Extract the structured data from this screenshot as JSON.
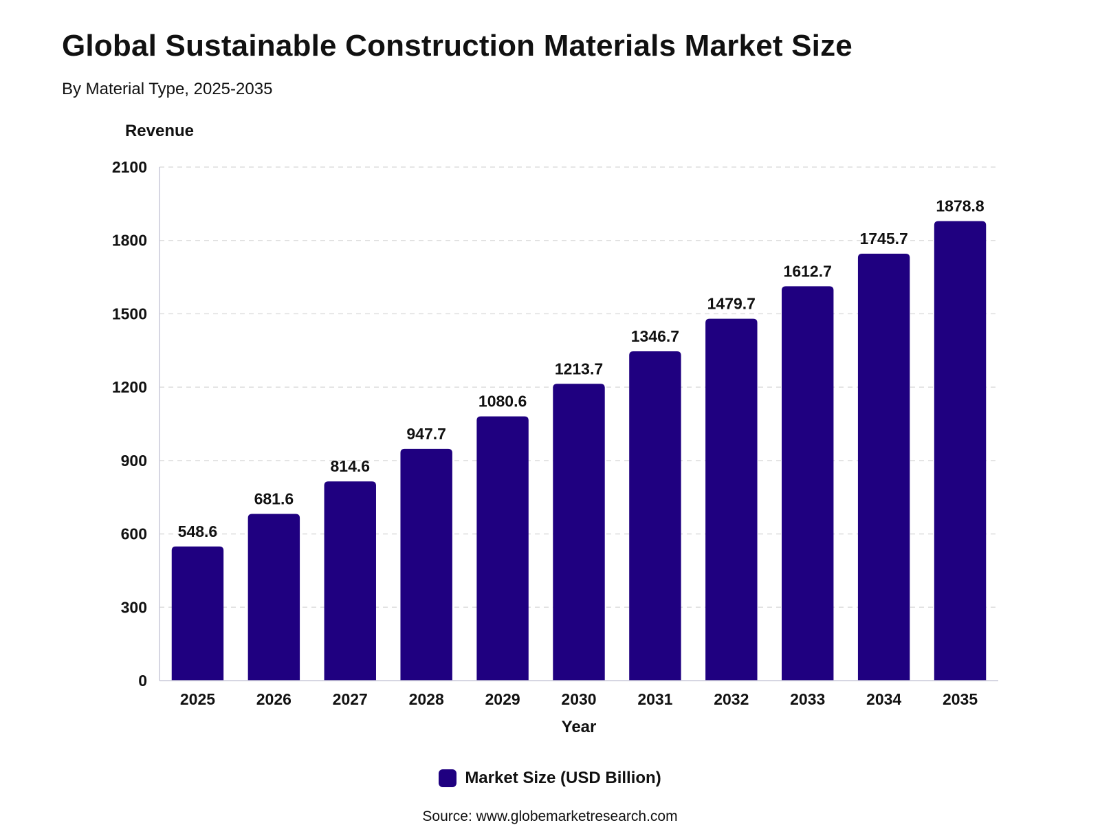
{
  "title": "Global Sustainable Construction Materials Market Size",
  "subtitle": "By Material Type, 2025-2035",
  "source": "Source: www.globemarketresearch.com",
  "colors": {
    "bar": "#1f0080",
    "grid": "#dddddd",
    "axis": "#c8c8d8"
  },
  "chart_data": {
    "type": "bar",
    "ylabel": "Revenue",
    "xlabel": "Year",
    "ylim": [
      0,
      2100
    ],
    "yticks": [
      0,
      300,
      600,
      900,
      1200,
      1500,
      1800,
      2100
    ],
    "grid": true,
    "legend_position": "bottom-center",
    "categories": [
      "2025",
      "2026",
      "2027",
      "2028",
      "2029",
      "2030",
      "2031",
      "2032",
      "2033",
      "2034",
      "2035"
    ],
    "series": [
      {
        "name": "Market Size (USD Billion)",
        "values": [
          548.6,
          681.6,
          814.6,
          947.7,
          1080.6,
          1213.7,
          1346.7,
          1479.7,
          1612.7,
          1745.7,
          1878.8
        ]
      }
    ]
  }
}
